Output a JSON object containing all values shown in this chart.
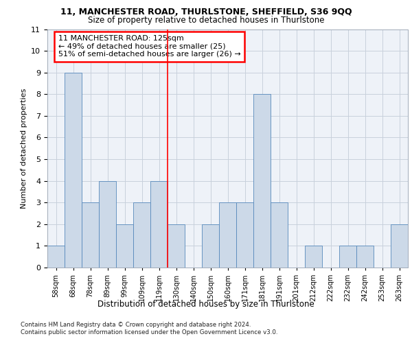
{
  "title1": "11, MANCHESTER ROAD, THURLSTONE, SHEFFIELD, S36 9QQ",
  "title2": "Size of property relative to detached houses in Thurlstone",
  "xlabel": "Distribution of detached houses by size in Thurlstone",
  "ylabel": "Number of detached properties",
  "categories": [
    "58sqm",
    "68sqm",
    "78sqm",
    "89sqm",
    "99sqm",
    "109sqm",
    "119sqm",
    "130sqm",
    "140sqm",
    "150sqm",
    "160sqm",
    "171sqm",
    "181sqm",
    "191sqm",
    "201sqm",
    "212sqm",
    "222sqm",
    "232sqm",
    "242sqm",
    "253sqm",
    "263sqm"
  ],
  "values": [
    1,
    9,
    3,
    4,
    2,
    3,
    4,
    2,
    0,
    2,
    3,
    3,
    8,
    3,
    0,
    1,
    0,
    1,
    1,
    0,
    2
  ],
  "bar_color": "#ccd9e8",
  "bar_edge_color": "#5588bb",
  "red_line_x": 6.5,
  "annotation_text": "11 MANCHESTER ROAD: 125sqm\n← 49% of detached houses are smaller (25)\n51% of semi-detached houses are larger (26) →",
  "ylim": [
    0,
    11
  ],
  "yticks": [
    0,
    1,
    2,
    3,
    4,
    5,
    6,
    7,
    8,
    9,
    10,
    11
  ],
  "footer1": "Contains HM Land Registry data © Crown copyright and database right 2024.",
  "footer2": "Contains public sector information licensed under the Open Government Licence v3.0.",
  "bg_color": "#eef2f8",
  "grid_color": "#c8d0dc"
}
